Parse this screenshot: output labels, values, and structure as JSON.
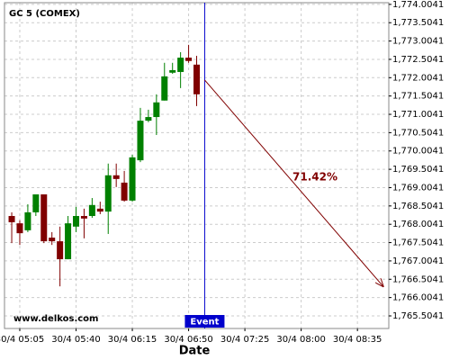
{
  "chart_data": {
    "type": "candlestick",
    "title": "GC 5 (COMEX)",
    "xlabel": "Date",
    "watermark": "www.delkos.com",
    "x": [
      300,
      305,
      310,
      315,
      320,
      325,
      330,
      335,
      340,
      345,
      350,
      355,
      360,
      365,
      370,
      375,
      380,
      385,
      390,
      395,
      400,
      405,
      410,
      415
    ],
    "open": [
      1768.23,
      1768.03,
      1767.84,
      1768.33,
      1768.82,
      1767.64,
      1767.54,
      1767.05,
      1767.94,
      1768.23,
      1768.23,
      1768.43,
      1768.35,
      1769.34,
      1769.14,
      1768.65,
      1769.75,
      1770.83,
      1770.93,
      1771.38,
      1772.14,
      1772.16,
      1772.55,
      1772.36
    ],
    "high": [
      1768.33,
      1768.11,
      1768.55,
      1768.82,
      1768.82,
      1767.79,
      1767.94,
      1768.23,
      1768.48,
      1768.43,
      1768.72,
      1768.62,
      1769.66,
      1769.66,
      1769.46,
      1769.9,
      1771.18,
      1771.13,
      1771.55,
      1772.41,
      1772.41,
      1772.7,
      1772.9,
      1772.6
    ],
    "low": [
      1767.49,
      1767.44,
      1767.79,
      1768.23,
      1767.49,
      1767.44,
      1766.31,
      1767.05,
      1767.79,
      1767.62,
      1768.18,
      1768.28,
      1767.74,
      1769.02,
      1768.62,
      1768.62,
      1769.7,
      1770.79,
      1770.44,
      1771.38,
      1772.11,
      1771.72,
      1772.41,
      1771.23
    ],
    "close": [
      1768.06,
      1767.76,
      1768.33,
      1768.82,
      1767.54,
      1767.54,
      1767.05,
      1768.03,
      1768.23,
      1768.16,
      1768.53,
      1768.35,
      1769.34,
      1769.24,
      1768.65,
      1769.83,
      1770.83,
      1770.93,
      1771.33,
      1772.04,
      1772.21,
      1772.55,
      1772.46,
      1771.55
    ],
    "up_color": "#008000",
    "down_color": "#800000",
    "xlim": [
      295.5,
      534.5
    ],
    "ylim": [
      1765.16,
      1774.05
    ],
    "xticks": [
      {
        "value": 305,
        "label": "30/4 05:05"
      },
      {
        "value": 340,
        "label": "30/4 05:40"
      },
      {
        "value": 375,
        "label": "30/4 06:15"
      },
      {
        "value": 410,
        "label": "30/4 06:50"
      },
      {
        "value": 445,
        "label": "30/4 07:25"
      },
      {
        "value": 480,
        "label": "30/4 08:00"
      },
      {
        "value": 515,
        "label": "30/4 08:35"
      }
    ],
    "yticks": [
      {
        "value": 1765.5041,
        "label": "1,765.5041"
      },
      {
        "value": 1766.0041,
        "label": "1,766.0041"
      },
      {
        "value": 1766.5041,
        "label": "1,766.5041"
      },
      {
        "value": 1767.0041,
        "label": "1,767.0041"
      },
      {
        "value": 1767.5041,
        "label": "1,767.5041"
      },
      {
        "value": 1768.0041,
        "label": "1,768.0041"
      },
      {
        "value": 1768.5041,
        "label": "1,768.5041"
      },
      {
        "value": 1769.0041,
        "label": "1,769.0041"
      },
      {
        "value": 1769.5041,
        "label": "1,769.5041"
      },
      {
        "value": 1770.0041,
        "label": "1,770.0041"
      },
      {
        "value": 1770.5041,
        "label": "1,770.5041"
      },
      {
        "value": 1771.0041,
        "label": "1,771.0041"
      },
      {
        "value": 1771.5041,
        "label": "1,771.5041"
      },
      {
        "value": 1772.0041,
        "label": "1,772.0041"
      },
      {
        "value": 1772.5041,
        "label": "1,772.5041"
      },
      {
        "value": 1773.0041,
        "label": "1,773.0041"
      },
      {
        "value": 1773.5041,
        "label": "1,773.5041"
      },
      {
        "value": 1774.0041,
        "label": "1,774.0041"
      }
    ],
    "grid": true,
    "event": {
      "label": "Event",
      "x": 420,
      "color": "#0000cc"
    },
    "arrow": {
      "x": [
        420,
        531
      ],
      "y": [
        1771.94,
        1766.31
      ],
      "label": "71.42%",
      "color": "#800000"
    }
  }
}
